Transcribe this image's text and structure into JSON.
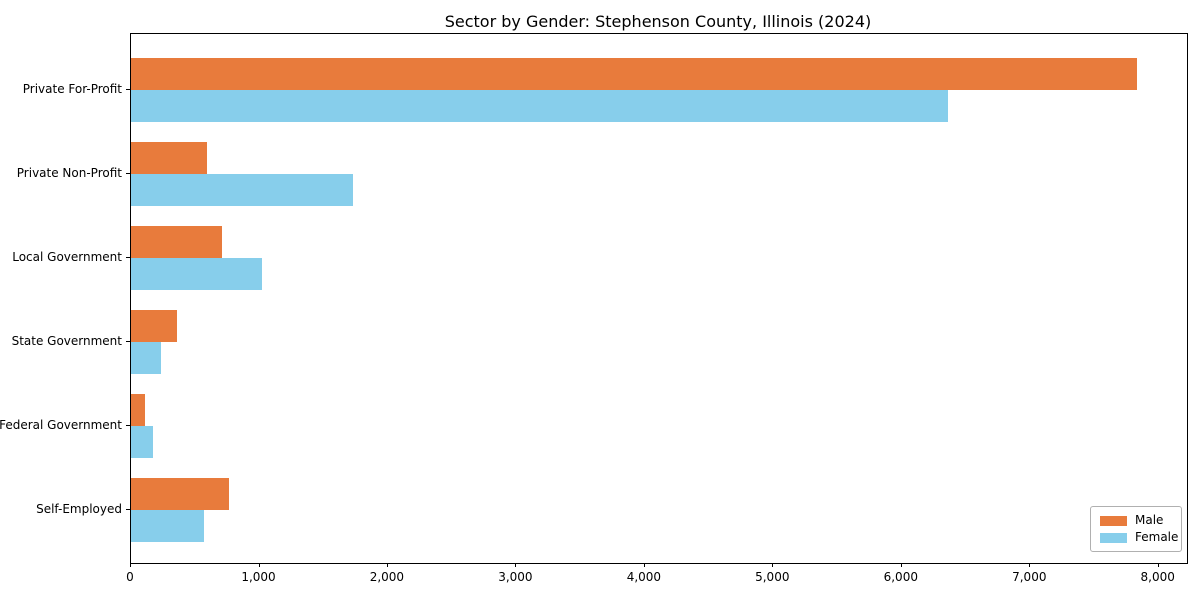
{
  "chart_data": {
    "type": "bar",
    "orientation": "horizontal",
    "title": "Sector by Gender: Stephenson County, Illinois (2024)",
    "categories": [
      "Private For-Profit",
      "Private Non-Profit",
      "Local Government",
      "State Government",
      "Federal Government",
      "Self-Employed"
    ],
    "series": [
      {
        "name": "Male",
        "color": "#e87b3c",
        "values": [
          7830,
          595,
          705,
          360,
          110,
          765
        ]
      },
      {
        "name": "Female",
        "color": "#87ceeb",
        "values": [
          6360,
          1730,
          1020,
          230,
          170,
          570
        ]
      }
    ],
    "xlabel": "",
    "ylabel": "",
    "xlim": [
      0,
      8220
    ],
    "xtick_values": [
      0,
      1000,
      2000,
      3000,
      4000,
      5000,
      6000,
      7000,
      8000
    ],
    "xtick_labels": [
      "0",
      "1,000",
      "2,000",
      "3,000",
      "4,000",
      "5,000",
      "6,000",
      "7,000",
      "8,000"
    ],
    "grid": false,
    "legend": {
      "position": "lower right"
    }
  }
}
